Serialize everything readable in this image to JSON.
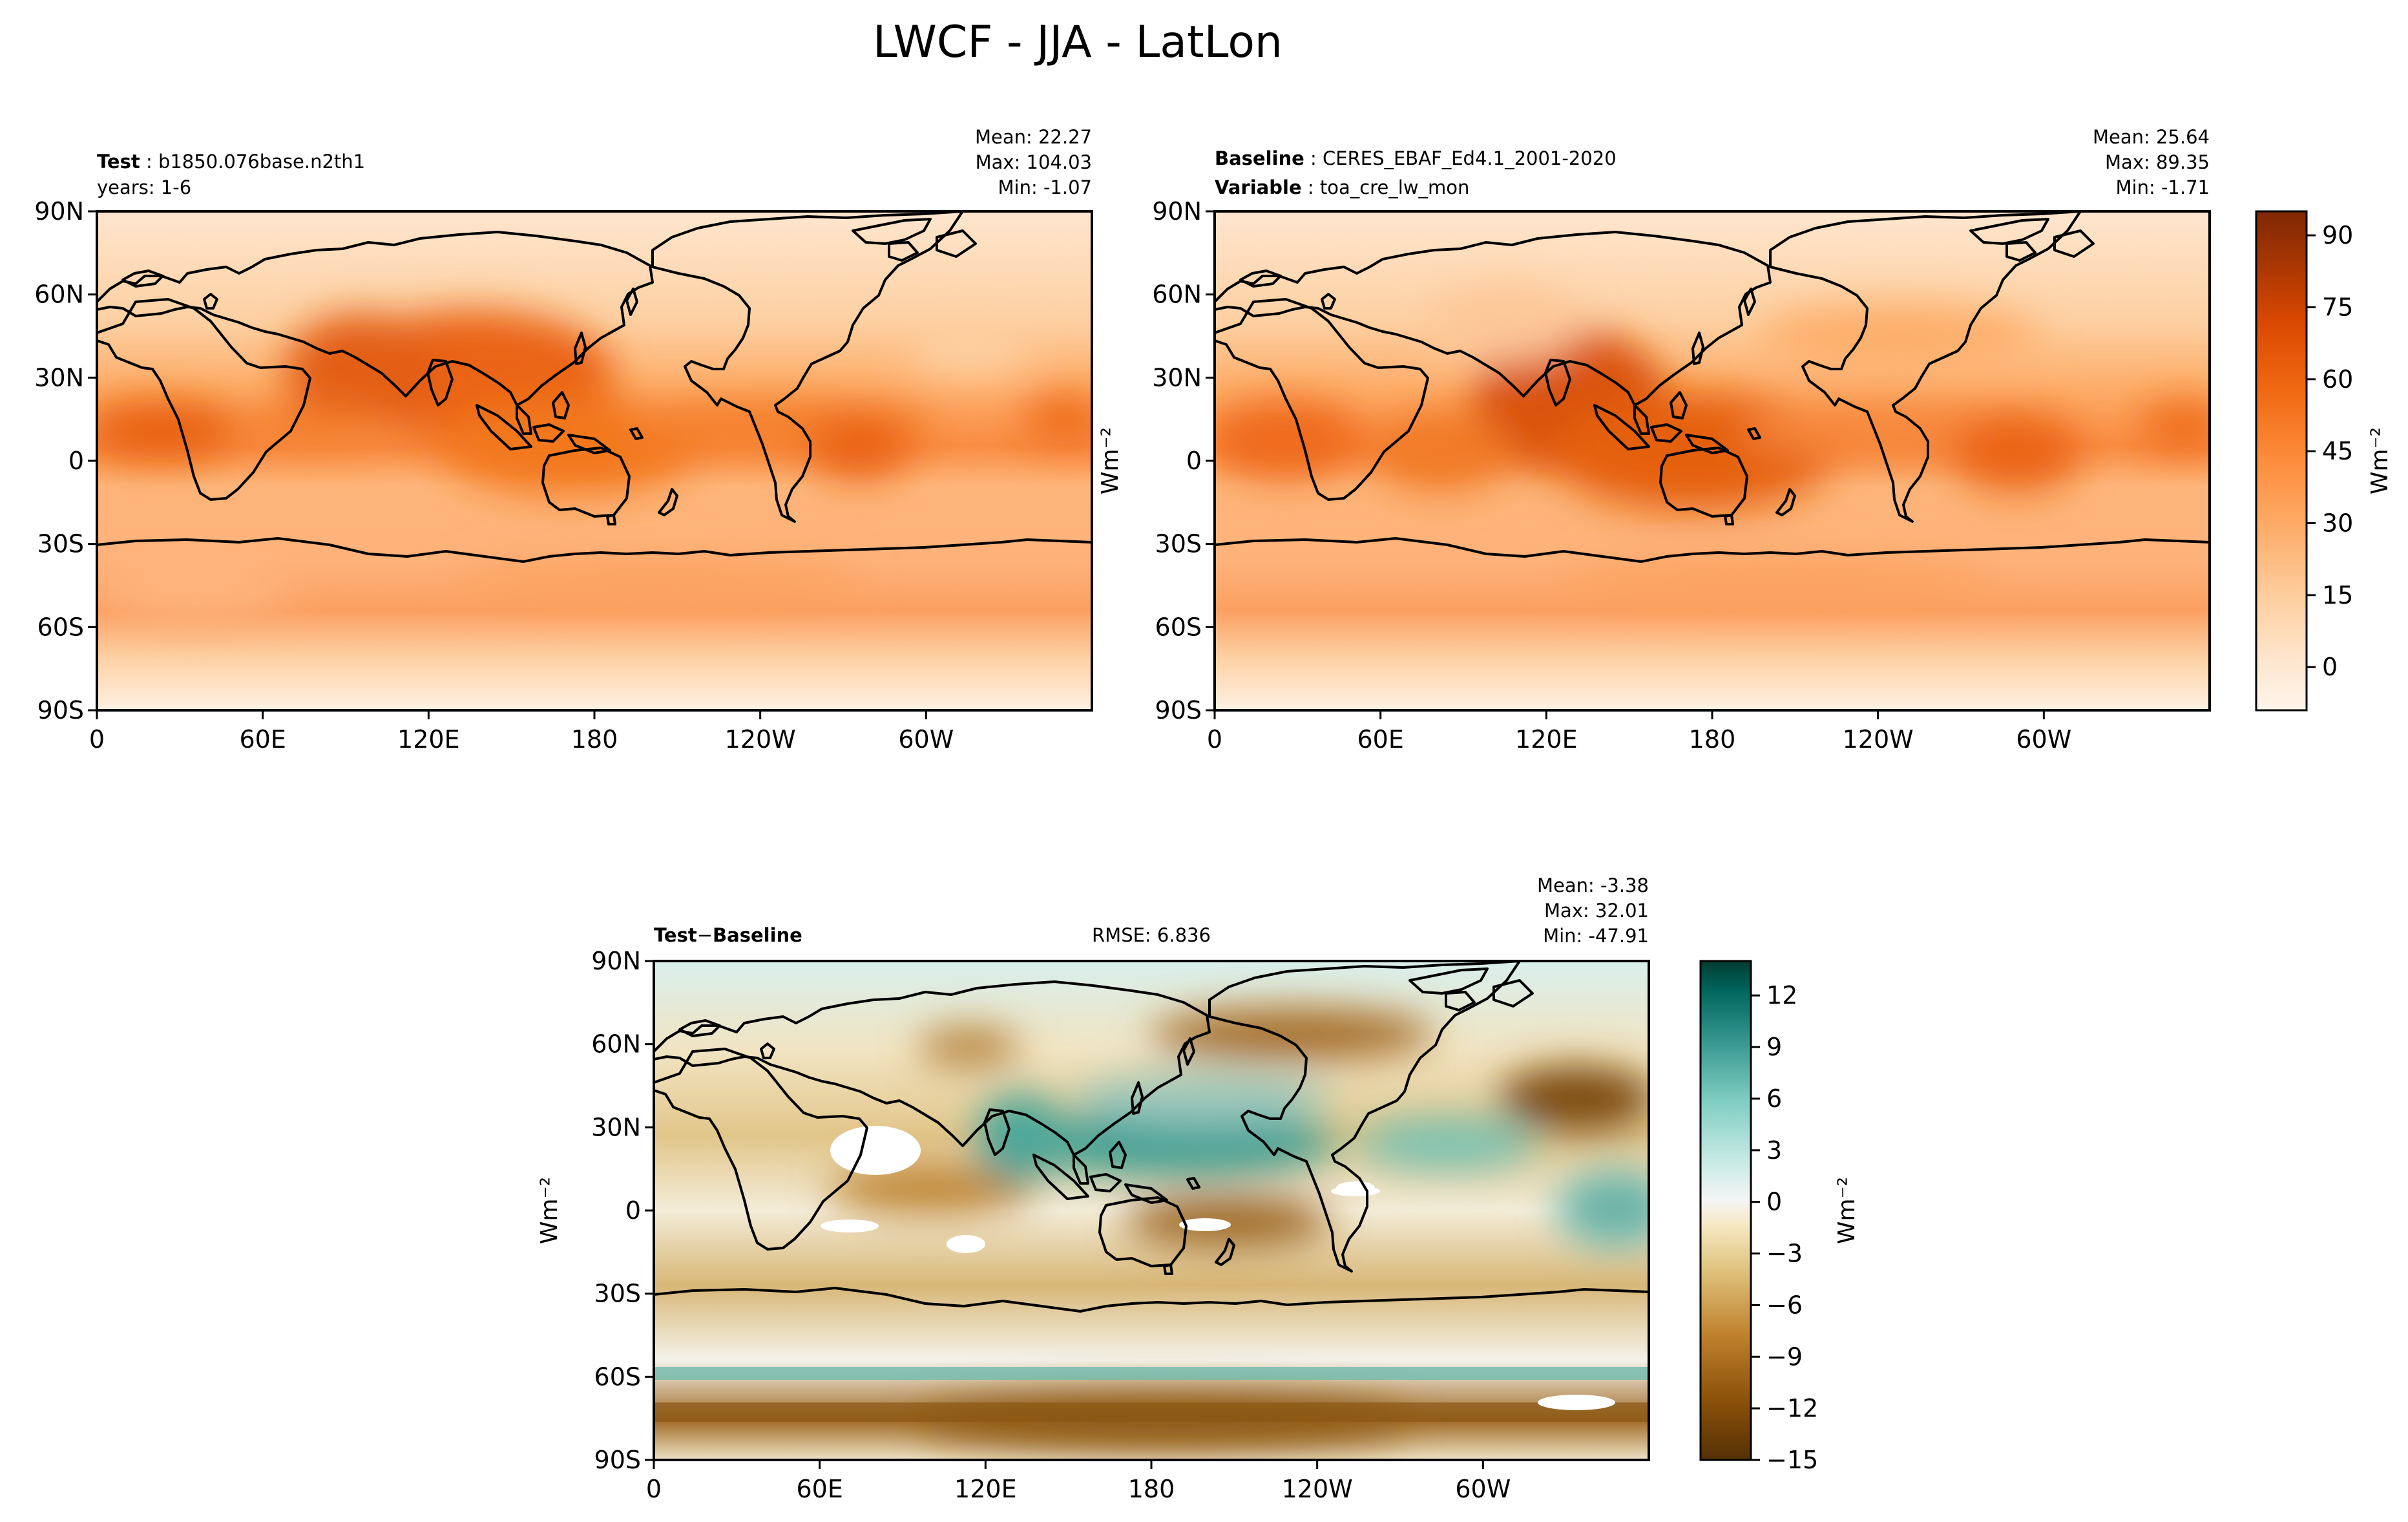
{
  "figure": {
    "title": "LWCF - JJA - LatLon"
  },
  "colors": {
    "orange_scale": [
      "#fff5eb",
      "#fee6ce",
      "#fdd0a2",
      "#fdae6b",
      "#fd8d3c",
      "#f16913",
      "#d94801",
      "#a63603",
      "#7f2704"
    ],
    "diverging_scale": [
      "#543005",
      "#8c510a",
      "#bf812d",
      "#dfc27d",
      "#f6e8c3",
      "#f5f5f5",
      "#c7eae5",
      "#80cdc1",
      "#35978f",
      "#01665e",
      "#003c30"
    ],
    "coast": "#000000"
  },
  "panels": {
    "test": {
      "label": "Test",
      "name": "b1850.076base.n2th1",
      "line2": "years: 1-6",
      "mean": "Mean: 22.27",
      "max": "Max: 104.03",
      "min": "Min: -1.07"
    },
    "baseline": {
      "label": "Baseline",
      "name": "CERES_EBAF_Ed4.1_2001-2020",
      "label2": "Variable",
      "name2": "toa_cre_lw_mon",
      "mean": "Mean: 25.64",
      "max": "Max: 89.35",
      "min": "Min: -1.71"
    },
    "diff": {
      "label_a": "Test",
      "op": "−",
      "label_b": "Baseline",
      "rmse": "RMSE: 6.836",
      "mean": "Mean: -3.38",
      "max": "Max: 32.01",
      "min": "Min: -47.91"
    }
  },
  "axes": {
    "lat_ticks": [
      "90N",
      "60N",
      "30N",
      "0",
      "30S",
      "60S",
      "90S"
    ],
    "lon_ticks": [
      "0",
      "60E",
      "120E",
      "180",
      "120W",
      "60W"
    ],
    "units": "Wm⁻²"
  },
  "colorbars": {
    "top": {
      "ticks": [
        "90",
        "75",
        "60",
        "45",
        "30",
        "15",
        "0"
      ],
      "range": [
        -9,
        95
      ]
    },
    "bottom": {
      "ticks": [
        "12",
        "9",
        "6",
        "3",
        "0",
        "−3",
        "−6",
        "−9",
        "−12",
        "−15"
      ],
      "range": [
        -15,
        14
      ]
    }
  },
  "chart_data": [
    {
      "type": "heatmap",
      "title": "LWCF - JJA - LatLon",
      "panel": "Test",
      "ylabel": "Wm⁻²",
      "x_ticks": [
        "0",
        "60E",
        "120E",
        "180",
        "120W",
        "60W"
      ],
      "y_ticks": [
        "90N",
        "60N",
        "30N",
        "0",
        "30S",
        "60S",
        "90S"
      ],
      "lat_range": [
        -90,
        90
      ],
      "lon_range": [
        0,
        360
      ],
      "value_range": [
        -1.07,
        104.03
      ],
      "mean": 22.27
    },
    {
      "type": "heatmap",
      "panel": "Baseline",
      "x_ticks": [
        "0",
        "60E",
        "120E",
        "180",
        "120W",
        "60W"
      ],
      "y_ticks": [
        "90N",
        "60N",
        "30N",
        "0",
        "30S",
        "60S",
        "90S"
      ],
      "lat_range": [
        -90,
        90
      ],
      "lon_range": [
        0,
        360
      ],
      "value_range": [
        -1.71,
        89.35
      ],
      "mean": 25.64
    },
    {
      "type": "heatmap",
      "panel": "Test - Baseline",
      "ylabel": "Wm⁻²",
      "x_ticks": [
        "0",
        "60E",
        "120E",
        "180",
        "120W",
        "60W"
      ],
      "y_ticks": [
        "90N",
        "60N",
        "30N",
        "0",
        "30S",
        "60S",
        "90S"
      ],
      "lat_range": [
        -90,
        90
      ],
      "lon_range": [
        0,
        360
      ],
      "value_range": [
        -47.91,
        32.01
      ],
      "mean": -3.38,
      "rmse": 6.836
    }
  ]
}
